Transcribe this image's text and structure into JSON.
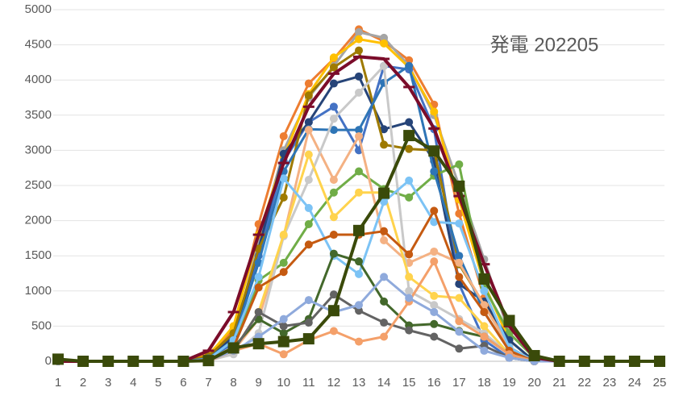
{
  "chart_data": {
    "type": "line",
    "title": "発電 202205",
    "categories": [
      1,
      2,
      3,
      4,
      5,
      6,
      7,
      8,
      9,
      10,
      11,
      12,
      13,
      14,
      15,
      16,
      17,
      18,
      19,
      20,
      21,
      22,
      23,
      24,
      25
    ],
    "ylim": [
      0,
      5000
    ],
    "yticks": [
      0,
      500,
      1000,
      1500,
      2000,
      2500,
      3000,
      3500,
      4000,
      4500,
      5000
    ],
    "grid": true,
    "series": [
      {
        "color": "#ed7d31",
        "marker": "circle",
        "values": [
          0,
          0,
          0,
          0,
          0,
          0,
          100,
          450,
          1950,
          3200,
          3950,
          4300,
          4720,
          4550,
          4280,
          3650,
          2100,
          900,
          200,
          0,
          0,
          0,
          0,
          0,
          0
        ]
      },
      {
        "color": "#a5a5a5",
        "marker": "circle",
        "values": [
          0,
          0,
          0,
          0,
          0,
          0,
          50,
          300,
          1700,
          3000,
          3750,
          4200,
          4680,
          4600,
          4200,
          3500,
          2500,
          1450,
          400,
          50,
          0,
          0,
          0,
          0,
          0
        ]
      },
      {
        "color": "#ffc000",
        "marker": "circle",
        "values": [
          0,
          0,
          0,
          0,
          0,
          0,
          80,
          500,
          1800,
          2900,
          3800,
          4320,
          4580,
          4520,
          4180,
          3550,
          2300,
          1100,
          300,
          0,
          0,
          0,
          0,
          0,
          0
        ]
      },
      {
        "color": "#4472c4",
        "marker": "circle",
        "values": [
          0,
          0,
          0,
          0,
          0,
          0,
          50,
          250,
          1500,
          2850,
          3400,
          3620,
          3000,
          4200,
          4150,
          3300,
          1100,
          300,
          50,
          0,
          0,
          0,
          0,
          0,
          0
        ]
      },
      {
        "color": "#70ad47",
        "marker": "circle",
        "values": [
          0,
          0,
          0,
          0,
          0,
          0,
          30,
          200,
          1150,
          1400,
          1950,
          2400,
          2700,
          2450,
          2330,
          2640,
          2800,
          1050,
          400,
          50,
          0,
          0,
          0,
          0,
          0
        ]
      },
      {
        "color": "#264478",
        "marker": "circle",
        "values": [
          0,
          0,
          0,
          0,
          0,
          0,
          60,
          350,
          1600,
          2950,
          3400,
          3950,
          4050,
          3300,
          3400,
          2850,
          1100,
          850,
          300,
          0,
          0,
          0,
          0,
          0,
          0
        ]
      },
      {
        "color": "#9e7a00",
        "marker": "circle",
        "values": [
          0,
          0,
          0,
          0,
          0,
          0,
          70,
          400,
          1600,
          2330,
          3780,
          4180,
          4420,
          3080,
          3020,
          3000,
          1380,
          800,
          200,
          0,
          0,
          0,
          0,
          0,
          0
        ]
      },
      {
        "color": "#2e75b6",
        "marker": "circle",
        "values": [
          0,
          0,
          0,
          0,
          0,
          0,
          40,
          300,
          1400,
          2700,
          3300,
          3290,
          3290,
          3960,
          4200,
          2700,
          1500,
          700,
          150,
          0,
          0,
          0,
          0,
          0,
          0
        ]
      },
      {
        "color": "#f4b183",
        "marker": "circle",
        "values": [
          0,
          0,
          0,
          0,
          0,
          0,
          20,
          150,
          600,
          1780,
          3290,
          2580,
          3200,
          1720,
          1400,
          1560,
          1400,
          800,
          200,
          0,
          0,
          0,
          0,
          0,
          0
        ]
      },
      {
        "color": "#c9c9c9",
        "marker": "circle",
        "values": [
          0,
          0,
          0,
          0,
          0,
          0,
          10,
          100,
          400,
          1780,
          2580,
          3450,
          3820,
          4200,
          1000,
          800,
          600,
          400,
          100,
          0,
          0,
          0,
          0,
          0,
          0
        ]
      },
      {
        "color": "#ffd34d",
        "marker": "circle",
        "values": [
          0,
          0,
          0,
          0,
          0,
          0,
          10,
          150,
          700,
          1800,
          2940,
          2050,
          2400,
          2400,
          1200,
          930,
          900,
          500,
          100,
          0,
          0,
          0,
          0,
          0,
          0
        ]
      },
      {
        "color": "#7cc3f5",
        "marker": "circle",
        "values": [
          0,
          0,
          0,
          0,
          0,
          0,
          30,
          300,
          1200,
          2600,
          2180,
          1500,
          1240,
          2270,
          2570,
          1980,
          1960,
          1000,
          200,
          0,
          0,
          0,
          0,
          0,
          0
        ]
      },
      {
        "color": "#c55a11",
        "marker": "circle",
        "values": [
          0,
          0,
          0,
          0,
          0,
          0,
          20,
          200,
          1050,
          1270,
          1660,
          1800,
          1800,
          1850,
          1520,
          2140,
          1200,
          700,
          150,
          0,
          0,
          0,
          0,
          0,
          0
        ]
      },
      {
        "color": "#43682b",
        "marker": "circle",
        "values": [
          0,
          0,
          0,
          0,
          0,
          0,
          10,
          200,
          600,
          400,
          600,
          1530,
          1420,
          850,
          510,
          530,
          430,
          350,
          100,
          0,
          0,
          0,
          0,
          0,
          0
        ]
      },
      {
        "color": "#636363",
        "marker": "circle",
        "values": [
          0,
          0,
          0,
          0,
          0,
          0,
          10,
          150,
          700,
          500,
          550,
          950,
          720,
          550,
          440,
          350,
          180,
          220,
          50,
          0,
          0,
          0,
          0,
          0,
          0
        ]
      },
      {
        "color": "#f4a06a",
        "marker": "circle",
        "values": [
          0,
          0,
          0,
          0,
          0,
          0,
          0,
          150,
          250,
          100,
          300,
          430,
          280,
          350,
          850,
          1420,
          570,
          350,
          100,
          0,
          0,
          0,
          0,
          0,
          0
        ]
      },
      {
        "color": "#8faadc",
        "marker": "circle",
        "values": [
          0,
          0,
          0,
          0,
          0,
          0,
          10,
          150,
          350,
          600,
          870,
          700,
          800,
          1200,
          900,
          700,
          420,
          150,
          50,
          0,
          0,
          0,
          0,
          0,
          0
        ]
      },
      {
        "color": "#7b0c2a",
        "marker": "dash",
        "values": [
          0,
          0,
          0,
          0,
          0,
          0,
          150,
          700,
          1800,
          2820,
          3620,
          4090,
          4330,
          4300,
          3900,
          3310,
          2350,
          1380,
          500,
          50,
          0,
          0,
          0,
          0,
          0
        ]
      },
      {
        "color": "#3a4a0a",
        "marker": "square",
        "values": [
          30,
          0,
          0,
          0,
          0,
          0,
          10,
          190,
          250,
          280,
          320,
          720,
          1860,
          2390,
          3210,
          2990,
          2490,
          1170,
          580,
          80,
          0,
          0,
          0,
          0,
          0
        ]
      }
    ]
  }
}
